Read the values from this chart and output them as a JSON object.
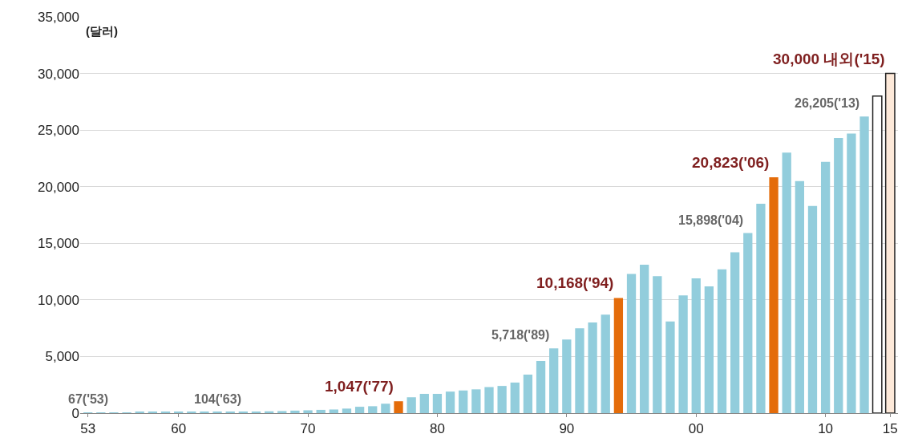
{
  "chart_data": {
    "type": "bar",
    "x": [
      1953,
      1954,
      1955,
      1956,
      1957,
      1958,
      1959,
      1960,
      1961,
      1962,
      1963,
      1964,
      1965,
      1966,
      1967,
      1968,
      1969,
      1970,
      1971,
      1972,
      1973,
      1974,
      1975,
      1976,
      1977,
      1978,
      1979,
      1980,
      1981,
      1982,
      1983,
      1984,
      1985,
      1986,
      1987,
      1988,
      1989,
      1990,
      1991,
      1992,
      1993,
      1994,
      1995,
      1996,
      1997,
      1998,
      1999,
      2000,
      2001,
      2002,
      2003,
      2004,
      2005,
      2006,
      2007,
      2008,
      2009,
      2010,
      2011,
      2012,
      2013,
      2014,
      2015
    ],
    "values": [
      67,
      70,
      65,
      66,
      74,
      80,
      81,
      79,
      93,
      91,
      104,
      107,
      109,
      130,
      160,
      180,
      220,
      250,
      290,
      320,
      400,
      560,
      610,
      830,
      1047,
      1400,
      1700,
      1700,
      1900,
      2000,
      2100,
      2300,
      2400,
      2700,
      3400,
      4600,
      5718,
      6500,
      7500,
      8000,
      8700,
      10168,
      12300,
      13100,
      12100,
      8100,
      10400,
      11900,
      11200,
      12700,
      14200,
      15898,
      18500,
      20823,
      23000,
      20500,
      18300,
      22200,
      24300,
      24700,
      26205,
      28000,
      30000
    ],
    "colors": [
      "#92cddc",
      "#92cddc",
      "#92cddc",
      "#92cddc",
      "#92cddc",
      "#92cddc",
      "#92cddc",
      "#92cddc",
      "#92cddc",
      "#92cddc",
      "#92cddc",
      "#92cddc",
      "#92cddc",
      "#92cddc",
      "#92cddc",
      "#92cddc",
      "#92cddc",
      "#92cddc",
      "#92cddc",
      "#92cddc",
      "#92cddc",
      "#92cddc",
      "#92cddc",
      "#92cddc",
      "#e46c0a",
      "#92cddc",
      "#92cddc",
      "#92cddc",
      "#92cddc",
      "#92cddc",
      "#92cddc",
      "#92cddc",
      "#92cddc",
      "#92cddc",
      "#92cddc",
      "#92cddc",
      "#92cddc",
      "#92cddc",
      "#92cddc",
      "#92cddc",
      "#92cddc",
      "#e46c0a",
      "#92cddc",
      "#92cddc",
      "#92cddc",
      "#92cddc",
      "#92cddc",
      "#92cddc",
      "#92cddc",
      "#92cddc",
      "#92cddc",
      "#92cddc",
      "#92cddc",
      "#e46c0a",
      "#92cddc",
      "#92cddc",
      "#92cddc",
      "#92cddc",
      "#92cddc",
      "#92cddc",
      "#92cddc",
      "#ffffff",
      "#fde9d9"
    ],
    "xlim": [
      1952.4,
      2015.6
    ],
    "xticks": [
      {
        "value": 1953,
        "label": "53"
      },
      {
        "value": 1960,
        "label": "60"
      },
      {
        "value": 1970,
        "label": "70"
      },
      {
        "value": 1980,
        "label": "80"
      },
      {
        "value": 1990,
        "label": "90"
      },
      {
        "value": 2000,
        "label": "00"
      },
      {
        "value": 2010,
        "label": "10"
      },
      {
        "value": 2015,
        "label": "15"
      }
    ],
    "ylim": [
      0,
      35000
    ],
    "yticks": [
      {
        "value": 0,
        "label": "0"
      },
      {
        "value": 5000,
        "label": "5,000"
      },
      {
        "value": 10000,
        "label": "10,000"
      },
      {
        "value": 15000,
        "label": "15,000"
      },
      {
        "value": 20000,
        "label": "20,000"
      },
      {
        "value": 25000,
        "label": "25,000"
      },
      {
        "value": 30000,
        "label": "30,000"
      },
      {
        "value": 35000,
        "label": "35,000"
      }
    ],
    "grid": "y",
    "annotations": [
      "(달러)",
      {
        "text": "67('53)",
        "x": 1953,
        "y": 67
      },
      {
        "text": "104('63)",
        "x": 1963,
        "y": 104
      },
      {
        "text": "1,047('77)",
        "x": 1977,
        "y": 1047
      },
      {
        "text": "5,718('89)",
        "x": 1989,
        "y": 5718
      },
      {
        "text": "10,168('94)",
        "x": 1994,
        "y": 10168
      },
      {
        "text": "15,898('04)",
        "x": 2004,
        "y": 15898
      },
      {
        "text": "20,823('06)",
        "x": 2006,
        "y": 20823
      },
      {
        "text": "26,205('13)",
        "x": 2013,
        "y": 26205
      },
      {
        "text": "30,000 내외('15)",
        "x": 2015,
        "y": 30000
      }
    ]
  }
}
